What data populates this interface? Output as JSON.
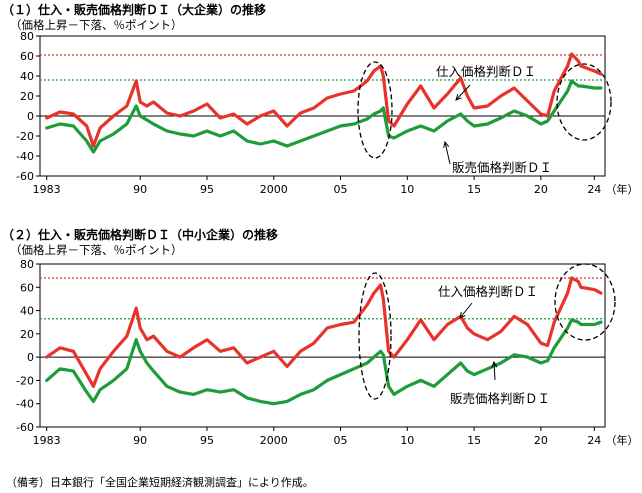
{
  "panel1": {
    "title": "（１）仕入・販売価格判断ＤＩ（大企業）の推移",
    "subtitle": "（価格上昇－下落、％ポイント）"
  },
  "panel2": {
    "title": "（２）仕入・販売価格判断ＤＩ（中小企業）の推移",
    "subtitle": "（価格上昇－下落、％ポイント）"
  },
  "note": "（備考）日本銀行「全国企業短期経済観測調査」により作成。",
  "colors": {
    "purchase": "#e8332a",
    "sales": "#1e9c3a",
    "ref_red": "#e8332a",
    "ref_green": "#1e9c3a"
  },
  "chart_data": [
    {
      "type": "line",
      "title": "（１）仕入・販売価格判断ＤＩ（大企業）の推移",
      "ylabel": "（価格上昇－下落、％ポイント）",
      "xlabel": "（年）",
      "ylim": [
        -60,
        80
      ],
      "yticks": [
        80,
        60,
        40,
        20,
        0,
        -20,
        -40,
        -60
      ],
      "xticks": [
        "1983",
        "90",
        "95",
        "2000",
        "05",
        "10",
        "15",
        "20",
        "24"
      ],
      "xtick_years": [
        1983,
        1990,
        1995,
        2000,
        2005,
        2010,
        2015,
        2020,
        2024
      ],
      "reference_lines": [
        {
          "value": 61,
          "color": "red",
          "style": "dotted"
        },
        {
          "value": 36,
          "color": "green",
          "style": "dotted"
        }
      ],
      "annotations": [
        "仕入価格判断ＤＩ",
        "販売価格判断ＤＩ"
      ],
      "series": [
        {
          "name": "仕入価格判断ＤＩ",
          "x": [
            1983,
            1984,
            1985,
            1986,
            1986.5,
            1987,
            1988,
            1989,
            1989.7,
            1990,
            1990.5,
            1991,
            1992,
            1993,
            1994,
            1995,
            1996,
            1997,
            1998,
            1999,
            2000,
            2001,
            2002,
            2003,
            2004,
            2005,
            2006,
            2007,
            2007.5,
            2008,
            2008.2,
            2008.6,
            2009,
            2010,
            2011,
            2012,
            2013,
            2014,
            2014.5,
            2015,
            2016,
            2017,
            2018,
            2019,
            2020,
            2020.5,
            2021,
            2022,
            2022.3,
            2022.8,
            2023,
            2024,
            2024.5
          ],
          "values": [
            -2,
            4,
            2,
            -10,
            -30,
            -12,
            0,
            10,
            35,
            14,
            10,
            14,
            3,
            0,
            5,
            12,
            -2,
            2,
            -8,
            0,
            5,
            -10,
            3,
            8,
            18,
            22,
            25,
            35,
            45,
            50,
            40,
            -5,
            -10,
            12,
            30,
            8,
            22,
            38,
            20,
            8,
            10,
            20,
            28,
            15,
            2,
            0,
            25,
            50,
            62,
            55,
            50,
            45,
            42
          ]
        },
        {
          "name": "販売価格判断ＤＩ",
          "x": [
            1983,
            1984,
            1985,
            1986,
            1986.5,
            1987,
            1988,
            1989,
            1989.7,
            1990,
            1990.5,
            1991,
            1992,
            1993,
            1994,
            1995,
            1996,
            1997,
            1998,
            1999,
            2000,
            2001,
            2002,
            2003,
            2004,
            2005,
            2006,
            2007,
            2007.5,
            2008,
            2008.2,
            2008.6,
            2009,
            2010,
            2011,
            2012,
            2013,
            2014,
            2014.5,
            2015,
            2016,
            2017,
            2018,
            2019,
            2020,
            2020.5,
            2021,
            2022,
            2022.3,
            2022.8,
            2023,
            2024,
            2024.5
          ],
          "values": [
            -12,
            -8,
            -10,
            -25,
            -36,
            -25,
            -18,
            -8,
            10,
            0,
            -4,
            -8,
            -15,
            -18,
            -20,
            -15,
            -20,
            -15,
            -25,
            -28,
            -25,
            -30,
            -25,
            -20,
            -15,
            -10,
            -8,
            -3,
            2,
            5,
            8,
            -20,
            -22,
            -15,
            -10,
            -15,
            -5,
            2,
            -5,
            -10,
            -8,
            -2,
            5,
            0,
            -8,
            -5,
            5,
            25,
            35,
            30,
            30,
            28,
            28
          ]
        }
      ]
    },
    {
      "type": "line",
      "title": "（２）仕入・販売価格判断ＤＩ（中小企業）の推移",
      "ylabel": "（価格上昇－下落、％ポイント）",
      "xlabel": "（年）",
      "ylim": [
        -60,
        80
      ],
      "yticks": [
        80,
        60,
        40,
        20,
        0,
        -20,
        -40,
        -60
      ],
      "xticks": [
        "1983",
        "90",
        "95",
        "2000",
        "05",
        "10",
        "15",
        "20",
        "24"
      ],
      "xtick_years": [
        1983,
        1990,
        1995,
        2000,
        2005,
        2010,
        2015,
        2020,
        2024
      ],
      "reference_lines": [
        {
          "value": 68,
          "color": "red",
          "style": "dotted"
        },
        {
          "value": 33,
          "color": "green",
          "style": "dotted"
        }
      ],
      "annotations": [
        "仕入価格判断ＤＩ",
        "販売価格判断ＤＩ"
      ],
      "series": [
        {
          "name": "仕入価格判断ＤＩ",
          "x": [
            1983,
            1984,
            1985,
            1986,
            1986.5,
            1987,
            1988,
            1989,
            1989.7,
            1990,
            1990.5,
            1991,
            1992,
            1993,
            1994,
            1995,
            1996,
            1997,
            1998,
            1999,
            2000,
            2001,
            2002,
            2003,
            2004,
            2005,
            2006,
            2007,
            2007.5,
            2008,
            2008.2,
            2008.6,
            2009,
            2010,
            2011,
            2012,
            2013,
            2014,
            2014.5,
            2015,
            2016,
            2017,
            2018,
            2019,
            2020,
            2020.5,
            2021,
            2022,
            2022.3,
            2022.8,
            2023,
            2024,
            2024.5
          ],
          "values": [
            0,
            8,
            5,
            -15,
            -25,
            -10,
            5,
            18,
            42,
            25,
            15,
            18,
            5,
            0,
            8,
            15,
            5,
            8,
            -5,
            0,
            5,
            -8,
            5,
            12,
            25,
            28,
            30,
            45,
            55,
            62,
            50,
            5,
            0,
            15,
            32,
            15,
            28,
            35,
            25,
            20,
            15,
            22,
            35,
            28,
            12,
            10,
            30,
            55,
            68,
            65,
            60,
            58,
            55
          ]
        },
        {
          "name": "販売価格判断ＤＩ",
          "x": [
            1983,
            1984,
            1985,
            1986,
            1986.5,
            1987,
            1988,
            1989,
            1989.7,
            1990,
            1990.5,
            1991,
            1992,
            1993,
            1994,
            1995,
            1996,
            1997,
            1998,
            1999,
            2000,
            2001,
            2002,
            2003,
            2004,
            2005,
            2006,
            2007,
            2007.5,
            2008,
            2008.2,
            2008.6,
            2009,
            2010,
            2011,
            2012,
            2013,
            2014,
            2014.5,
            2015,
            2016,
            2017,
            2018,
            2019,
            2020,
            2020.5,
            2021,
            2022,
            2022.3,
            2022.8,
            2023,
            2024,
            2024.5
          ],
          "values": [
            -20,
            -10,
            -12,
            -30,
            -38,
            -28,
            -20,
            -10,
            15,
            5,
            -5,
            -12,
            -25,
            -30,
            -32,
            -28,
            -30,
            -28,
            -35,
            -38,
            -40,
            -38,
            -32,
            -28,
            -20,
            -15,
            -10,
            -5,
            0,
            5,
            2,
            -25,
            -32,
            -25,
            -20,
            -25,
            -15,
            -5,
            -12,
            -15,
            -10,
            -5,
            2,
            0,
            -5,
            -3,
            8,
            25,
            32,
            30,
            28,
            28,
            30
          ]
        }
      ]
    }
  ]
}
